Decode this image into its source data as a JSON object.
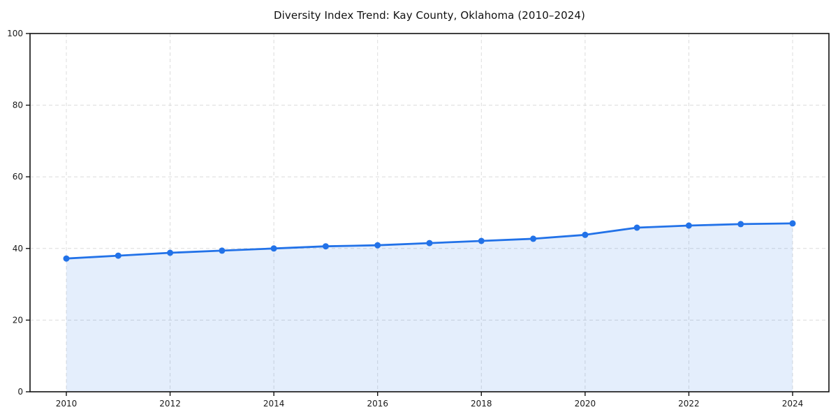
{
  "page": {
    "background_color": "#ffffff"
  },
  "chart_data": {
    "type": "area",
    "title": "Diversity Index Trend: Kay County, Oklahoma (2010–2024)",
    "xlabel": "",
    "ylabel": "",
    "x": [
      2010,
      2011,
      2012,
      2013,
      2014,
      2015,
      2016,
      2017,
      2018,
      2019,
      2020,
      2021,
      2022,
      2023,
      2024
    ],
    "series": [
      {
        "name": "Diversity Index",
        "values": [
          37.2,
          38.0,
          38.8,
          39.4,
          40.0,
          40.6,
          40.9,
          41.5,
          42.1,
          42.7,
          43.8,
          45.8,
          46.4,
          46.8,
          47.0
        ]
      }
    ],
    "xlim": [
      2009.3,
      2024.7
    ],
    "ylim": [
      0,
      100
    ],
    "xticks": [
      2010,
      2012,
      2014,
      2016,
      2018,
      2020,
      2022,
      2024
    ],
    "yticks": [
      0,
      20,
      40,
      60,
      80,
      100
    ],
    "grid": true,
    "grid_style": "dashed",
    "legend": "none",
    "line_color": "#2272e8",
    "fill_color": "#2272e8",
    "fill_opacity": 0.12,
    "marker": "circle",
    "grid_color": "#dcdcdc",
    "spine_color": "#111111",
    "tick_label_color": "#1a1a1a"
  }
}
